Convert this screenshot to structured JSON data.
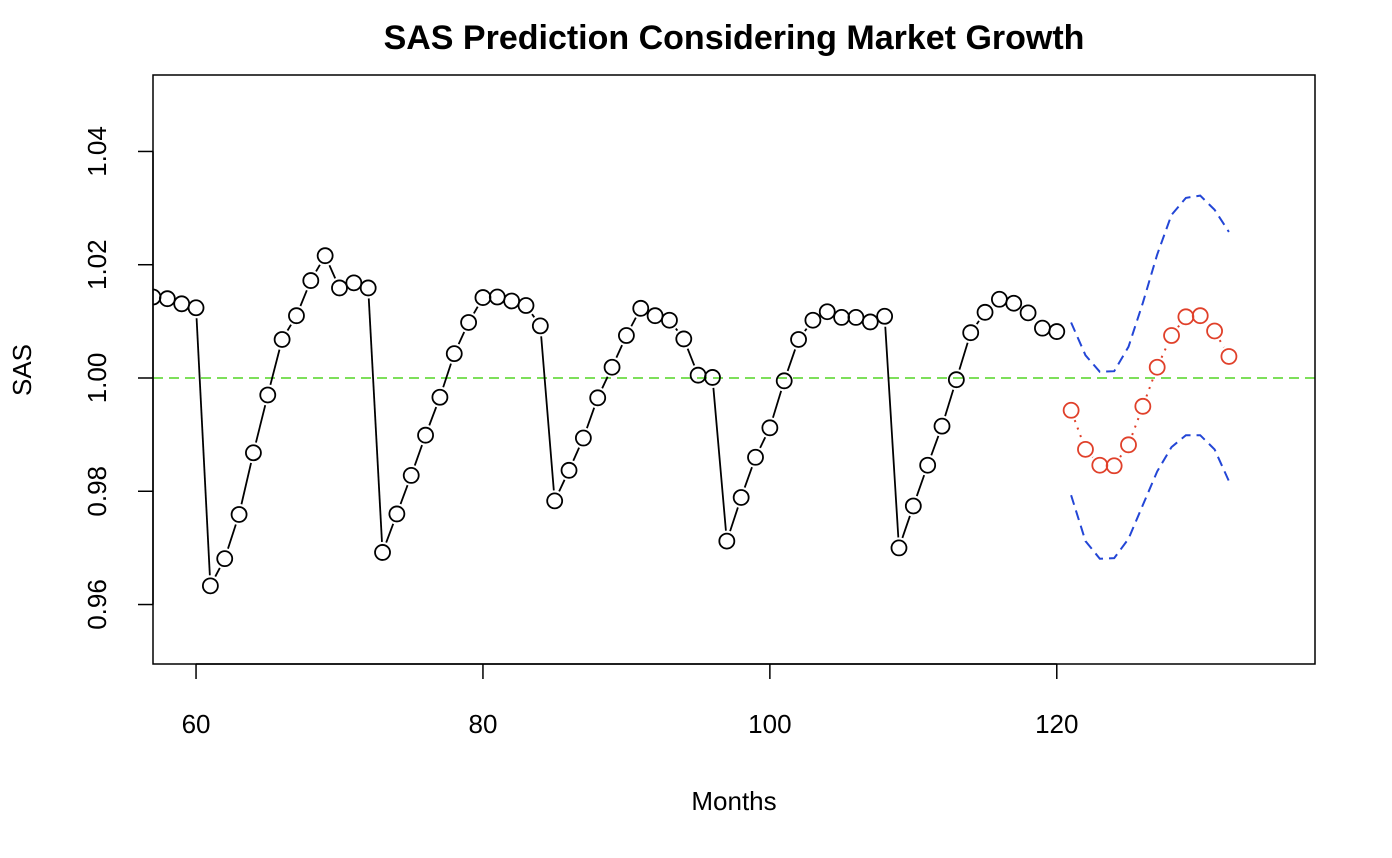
{
  "chart_data": {
    "type": "scatter",
    "title": "SAS Prediction Considering Market Growth",
    "xlabel": "Months",
    "ylabel": "SAS",
    "xlim": [
      57,
      138
    ],
    "ylim": [
      0.9495,
      1.0535
    ],
    "xticks": [
      60,
      80,
      100,
      120
    ],
    "xtick_labels": [
      "60",
      "80",
      "100",
      "120"
    ],
    "yticks": [
      0.96,
      0.98,
      1.0,
      1.02,
      1.04
    ],
    "ytick_labels": [
      "0.96",
      "0.98",
      "1.00",
      "1.02",
      "1.04"
    ],
    "grid": false,
    "reference_line": {
      "y": 1.0,
      "color": "#7ddf5a",
      "style": "dashed"
    },
    "series": [
      {
        "color": "#000000",
        "marker": "open-circle",
        "line": "type-b-connecting",
        "x": [
          57,
          58,
          59,
          60,
          61,
          62,
          63,
          64,
          65,
          66,
          67,
          68,
          69,
          70,
          71,
          72,
          73,
          74,
          75,
          76,
          77,
          78,
          79,
          80,
          81,
          82,
          83,
          84,
          85,
          86,
          87,
          88,
          89,
          90,
          91,
          92,
          93,
          94,
          95,
          96,
          97,
          98,
          99,
          100,
          101,
          102,
          103,
          104,
          105,
          106,
          107,
          108,
          109,
          110,
          111,
          112,
          113,
          114,
          115,
          116,
          117,
          118,
          119,
          120
        ],
        "y": [
          1.0143,
          1.014,
          1.0131,
          1.0124,
          0.9633,
          0.9681,
          0.9759,
          0.9868,
          0.997,
          1.0068,
          1.011,
          1.0172,
          1.0216,
          1.0159,
          1.0168,
          1.0159,
          0.9692,
          0.976,
          0.9828,
          0.9899,
          0.9966,
          1.0043,
          1.0098,
          1.0142,
          1.0143,
          1.0136,
          1.0128,
          1.0092,
          0.9783,
          0.9837,
          0.9894,
          0.9965,
          1.0019,
          1.0075,
          1.0123,
          1.011,
          1.0102,
          1.0069,
          1.0005,
          1.0001,
          0.9712,
          0.9789,
          0.986,
          0.9912,
          0.9995,
          1.0068,
          1.0102,
          1.0117,
          1.0107,
          1.0107,
          1.0099,
          1.0109,
          0.97,
          0.9774,
          0.9846,
          0.9915,
          0.9997,
          1.008,
          1.0116,
          1.0139,
          1.0132,
          1.0115,
          1.0088,
          1.0082
        ]
      },
      {
        "color": "#e0402a",
        "marker": "open-circle",
        "line": "dotted",
        "x": [
          121,
          122,
          123,
          124,
          125,
          126,
          127,
          128,
          129,
          130,
          131,
          132
        ],
        "y": [
          0.9943,
          0.9874,
          0.9846,
          0.9845,
          0.9882,
          0.995,
          1.0019,
          1.0075,
          1.0108,
          1.011,
          1.0083,
          1.0038
        ]
      },
      {
        "color": "#2346d6",
        "marker": "none",
        "line": "dashed",
        "x": [
          121,
          122,
          123,
          124,
          125,
          126,
          127,
          128,
          129,
          130,
          131,
          132
        ],
        "y": [
          1.0098,
          1.004,
          1.0011,
          1.0012,
          1.0055,
          1.0133,
          1.0218,
          1.0288,
          1.0318,
          1.0322,
          1.0297,
          1.0258
        ]
      },
      {
        "color": "#2346d6",
        "marker": "none",
        "line": "dashed",
        "x": [
          121,
          122,
          123,
          124,
          125,
          126,
          127,
          128,
          129,
          130,
          131,
          132
        ],
        "y": [
          0.9793,
          0.9712,
          0.9681,
          0.9682,
          0.9716,
          0.9776,
          0.9835,
          0.9878,
          0.9899,
          0.9899,
          0.9874,
          0.9818
        ]
      }
    ]
  }
}
